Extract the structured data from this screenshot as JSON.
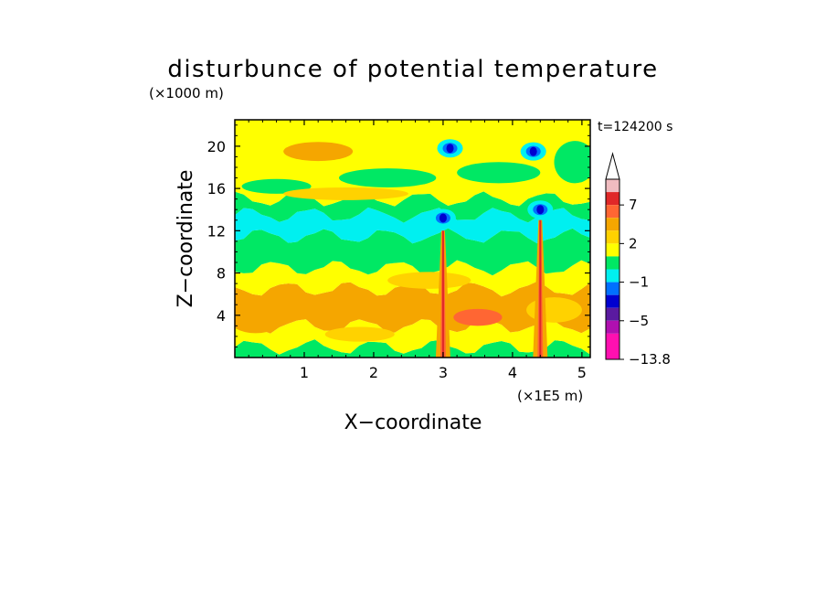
{
  "chart_data": {
    "type": "heatmap",
    "title": "disturbunce of potential temperature",
    "xlabel": "X−coordinate",
    "ylabel": "Z−coordinate",
    "x_unit": "(×1E5 m)",
    "y_unit": "(×1000 m)",
    "time_label": "t=124200 s",
    "xlim": [
      0,
      5.12
    ],
    "ylim": [
      0,
      22.5
    ],
    "x_ticks": [
      "1",
      "2",
      "3",
      "4",
      "5"
    ],
    "y_ticks": [
      "4",
      "8",
      "12",
      "16",
      "20"
    ],
    "grid": false,
    "colorbar": {
      "placement": "right",
      "tick_labels": [
        "7",
        "2",
        "−1",
        "−5",
        "−13.8"
      ],
      "levels": [
        {
          "color": "#f0bcc0"
        },
        {
          "color": "#e02828"
        },
        {
          "color": "#ff6633"
        },
        {
          "color": "#f5a600"
        },
        {
          "color": "#ffd200"
        },
        {
          "color": "#ffff00"
        },
        {
          "color": "#00e864"
        },
        {
          "color": "#00f0f0"
        },
        {
          "color": "#0070ff"
        },
        {
          "color": "#0000d0"
        },
        {
          "color": "#5a1aa0"
        },
        {
          "color": "#b010b0"
        },
        {
          "color": "#ff10b0"
        }
      ]
    },
    "features": [
      {
        "kind": "band",
        "z_from": 0,
        "z_to": 1,
        "level": "#00e864"
      },
      {
        "kind": "band",
        "z_from": 1,
        "z_to": 3,
        "level": "#ffff00"
      },
      {
        "kind": "band",
        "z_from": 3,
        "z_to": 6.5,
        "level": "#f5a600"
      },
      {
        "kind": "band",
        "z_from": 6.5,
        "z_to": 8.5,
        "level": "#ffff00"
      },
      {
        "kind": "band",
        "z_from": 8.5,
        "z_to": 11.5,
        "level": "#00e864"
      },
      {
        "kind": "band",
        "z_from": 11.5,
        "z_to": 13.5,
        "level": "#00f0f0"
      },
      {
        "kind": "band",
        "z_from": 13.5,
        "z_to": 15,
        "level": "#00e864"
      },
      {
        "kind": "band",
        "z_from": 15,
        "z_to": 22.5,
        "level": "#ffff00"
      },
      {
        "kind": "blob",
        "x": 3.0,
        "z": 13.2,
        "level": "#0000d0"
      },
      {
        "kind": "blob",
        "x": 4.4,
        "z": 14.0,
        "level": "#0000d0"
      },
      {
        "kind": "blob",
        "x": 4.3,
        "z": 19.5,
        "level": "#0000d0"
      },
      {
        "kind": "blob",
        "x": 3.1,
        "z": 19.8,
        "level": "#0000d0"
      },
      {
        "kind": "column",
        "x": 3.0,
        "z_from": 0,
        "z_to": 12,
        "level": "#ff6633"
      },
      {
        "kind": "column",
        "x": 4.4,
        "z_from": 0,
        "z_to": 13,
        "level": "#ff6633"
      }
    ]
  }
}
